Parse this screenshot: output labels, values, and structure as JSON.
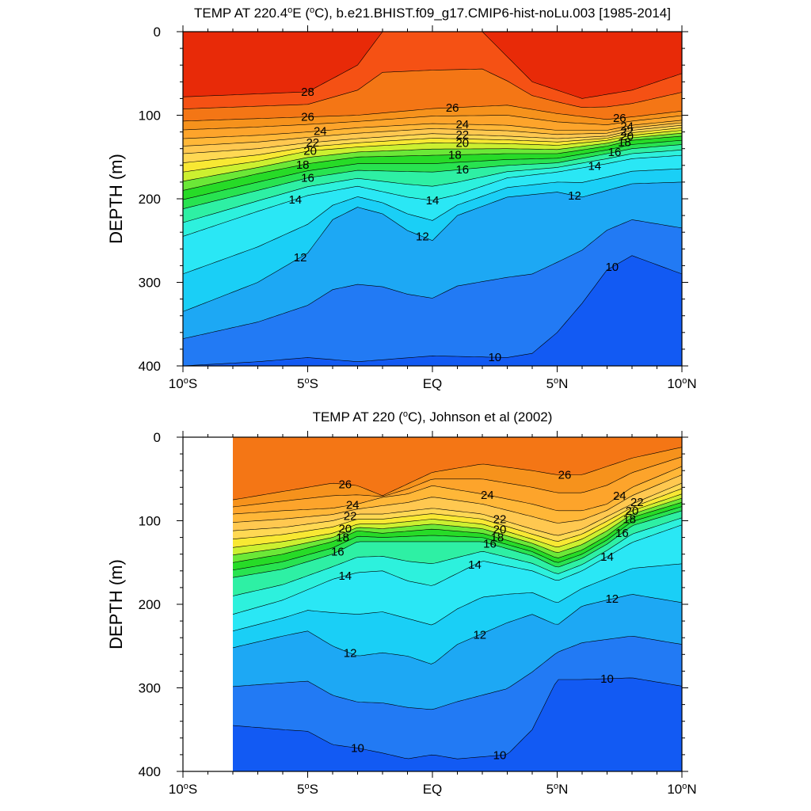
{
  "figure": {
    "panels": [
      {
        "title_main": "TEMP AT 220.4",
        "title_deg": "o",
        "title_mid": "E (",
        "title_unit_deg": "o",
        "title_rest": "C), b.e21.BHIST.f09_g17.CMIP6-hist-noLu.003 [1985-2014]",
        "ylabel": "DEPTH (m)"
      },
      {
        "title_main": "TEMP AT 220 (",
        "title_deg": "o",
        "title_rest": "C), Johnson et al (2002)",
        "ylabel": "DEPTH (m)"
      }
    ]
  },
  "chart_data": [
    {
      "type": "heatmap",
      "subtype": "filled-contour",
      "title": "TEMP AT 220.4°E (°C), b.e21.BHIST.f09_g17.CMIP6-hist-noLu.003 [1985-2014]",
      "xlabel": "",
      "ylabel": "DEPTH (m)",
      "x_range": [
        -10,
        10
      ],
      "y_range": [
        0,
        400
      ],
      "y_inverted": true,
      "x_ticks": [
        {
          "value": -10,
          "label": "10°S"
        },
        {
          "value": -5,
          "label": "5°S"
        },
        {
          "value": 0,
          "label": "EQ"
        },
        {
          "value": 5,
          "label": "5°N"
        },
        {
          "value": 10,
          "label": "10°N"
        }
      ],
      "y_ticks": [
        0,
        100,
        200,
        300,
        400
      ],
      "contour_interval": 1,
      "label_levels": [
        10,
        12,
        14,
        16,
        18,
        20,
        22,
        24,
        26,
        28
      ],
      "isotherms": [
        {
          "level": 28,
          "x": [
            -10,
            -5,
            -3,
            -2,
            0,
            2,
            4,
            6,
            8,
            10
          ],
          "depth": [
            78,
            72,
            40,
            0,
            0,
            0,
            60,
            80,
            70,
            50
          ]
        },
        {
          "level": 26,
          "x": [
            -10,
            -7,
            -5,
            -3,
            0,
            3,
            5,
            7,
            8,
            10
          ],
          "depth": [
            107,
            104,
            102,
            100,
            92,
            88,
            98,
            105,
            102,
            95
          ]
        },
        {
          "level": 24,
          "x": [
            -10,
            -7,
            -5,
            -3,
            0,
            3,
            5,
            7,
            8,
            10
          ],
          "depth": [
            128,
            124,
            120,
            115,
            110,
            112,
            118,
            118,
            112,
            106
          ]
        },
        {
          "level": 22,
          "x": [
            -10,
            -7,
            -5,
            -3,
            0,
            3,
            5,
            7,
            8,
            10
          ],
          "depth": [
            146,
            140,
            133,
            128,
            122,
            125,
            128,
            125,
            118,
            112
          ]
        },
        {
          "level": 20,
          "x": [
            -10,
            -7,
            -5,
            -3,
            0,
            3,
            5,
            7,
            8,
            10
          ],
          "depth": [
            168,
            155,
            143,
            138,
            133,
            134,
            136,
            130,
            124,
            118
          ]
        },
        {
          "level": 18,
          "x": [
            -10,
            -7,
            -5,
            -3,
            0,
            3,
            5,
            7,
            8,
            10
          ],
          "depth": [
            190,
            170,
            158,
            150,
            148,
            146,
            146,
            137,
            130,
            125
          ]
        },
        {
          "level": 16,
          "x": [
            -10,
            -7,
            -5,
            -3,
            0,
            3,
            5,
            7,
            8,
            10
          ],
          "depth": [
            212,
            190,
            175,
            166,
            168,
            160,
            157,
            146,
            140,
            135
          ]
        },
        {
          "level": 14,
          "x": [
            -10,
            -7,
            -5,
            -3,
            -1,
            0,
            1,
            3,
            5,
            7,
            8,
            10
          ],
          "depth": [
            245,
            215,
            196,
            185,
            198,
            202,
            195,
            175,
            168,
            158,
            152,
            148
          ]
        },
        {
          "level": 12,
          "x": [
            -10,
            -7,
            -5,
            -4,
            -3,
            -2,
            -1,
            0,
            1,
            3,
            5,
            6,
            7,
            8,
            10
          ],
          "depth": [
            335,
            300,
            265,
            225,
            210,
            218,
            238,
            250,
            220,
            198,
            192,
            198,
            190,
            182,
            180
          ]
        },
        {
          "level": 10,
          "x": [
            -10,
            -7,
            -5,
            -3,
            0,
            3,
            4,
            5,
            6,
            7,
            8,
            10
          ],
          "depth": [
            400,
            395,
            390,
            395,
            388,
            390,
            385,
            360,
            325,
            285,
            268,
            290
          ]
        }
      ]
    },
    {
      "type": "heatmap",
      "subtype": "filled-contour",
      "title": "TEMP AT 220 (°C), Johnson et al (2002)",
      "xlabel": "",
      "ylabel": "DEPTH (m)",
      "x_range": [
        -10,
        10
      ],
      "y_range": [
        0,
        400
      ],
      "y_inverted": true,
      "data_x_start": -8,
      "x_ticks": [
        {
          "value": -10,
          "label": "10°S"
        },
        {
          "value": -5,
          "label": "5°S"
        },
        {
          "value": 0,
          "label": "EQ"
        },
        {
          "value": 5,
          "label": "5°N"
        },
        {
          "value": 10,
          "label": "10°N"
        }
      ],
      "y_ticks": [
        0,
        100,
        200,
        300,
        400
      ],
      "contour_interval": 1,
      "label_levels": [
        10,
        12,
        14,
        16,
        18,
        20,
        22,
        24,
        26
      ],
      "isotherms": [
        {
          "level": 26,
          "x": [
            -8,
            -6,
            -4,
            -3,
            -2,
            0,
            2,
            4,
            5,
            6,
            8,
            10
          ],
          "depth": [
            75,
            65,
            55,
            58,
            70,
            42,
            32,
            40,
            45,
            45,
            25,
            12
          ]
        },
        {
          "level": 24,
          "x": [
            -8,
            -6,
            -4,
            -3,
            -2,
            -1,
            0,
            2,
            4,
            5,
            6,
            7,
            8,
            10
          ],
          "depth": [
            92,
            88,
            85,
            80,
            72,
            68,
            58,
            68,
            80,
            88,
            88,
            80,
            60,
            35
          ]
        },
        {
          "level": 22,
          "x": [
            -8,
            -6,
            -4,
            -3,
            -2,
            0,
            2,
            4,
            5,
            6,
            7,
            8,
            10
          ],
          "depth": [
            112,
            108,
            100,
            92,
            92,
            85,
            92,
            110,
            118,
            110,
            95,
            80,
            55
          ]
        },
        {
          "level": 20,
          "x": [
            -8,
            -6,
            -4,
            -3,
            -2,
            0,
            2,
            4,
            5,
            6,
            7,
            8,
            10
          ],
          "depth": [
            132,
            125,
            115,
            104,
            104,
            98,
            104,
            122,
            132,
            122,
            106,
            88,
            68
          ]
        },
        {
          "level": 18,
          "x": [
            -8,
            -6,
            -4,
            -3,
            -2,
            0,
            2,
            4,
            5,
            6,
            7,
            8,
            10
          ],
          "depth": [
            150,
            140,
            125,
            112,
            115,
            110,
            115,
            132,
            145,
            135,
            118,
            96,
            78
          ]
        },
        {
          "level": 16,
          "x": [
            -8,
            -6,
            -4,
            -3,
            -2,
            0,
            2,
            4,
            5,
            6,
            7,
            8,
            10
          ],
          "depth": [
            168,
            158,
            140,
            125,
            125,
            125,
            125,
            142,
            156,
            145,
            128,
            106,
            88
          ]
        },
        {
          "level": 14,
          "x": [
            -8,
            -6,
            -4,
            -3,
            -2,
            -1,
            0,
            2,
            4,
            5,
            6,
            8,
            10
          ],
          "depth": [
            212,
            195,
            170,
            162,
            160,
            172,
            178,
            148,
            160,
            172,
            160,
            126,
            105
          ]
        },
        {
          "level": 12,
          "x": [
            -8,
            -6,
            -5,
            -4,
            -3,
            -2,
            -1,
            0,
            1,
            3,
            4,
            5,
            6,
            8,
            10
          ],
          "depth": [
            252,
            238,
            232,
            250,
            262,
            258,
            262,
            272,
            248,
            222,
            212,
            225,
            202,
            188,
            198
          ]
        },
        {
          "level": 10,
          "x": [
            -8,
            -6,
            -5,
            -4,
            -3,
            -2,
            -1,
            0,
            1,
            3,
            4,
            5,
            6,
            8,
            10
          ],
          "depth": [
            345,
            350,
            352,
            368,
            372,
            378,
            385,
            380,
            385,
            380,
            350,
            290,
            290,
            288,
            298
          ]
        }
      ]
    }
  ]
}
